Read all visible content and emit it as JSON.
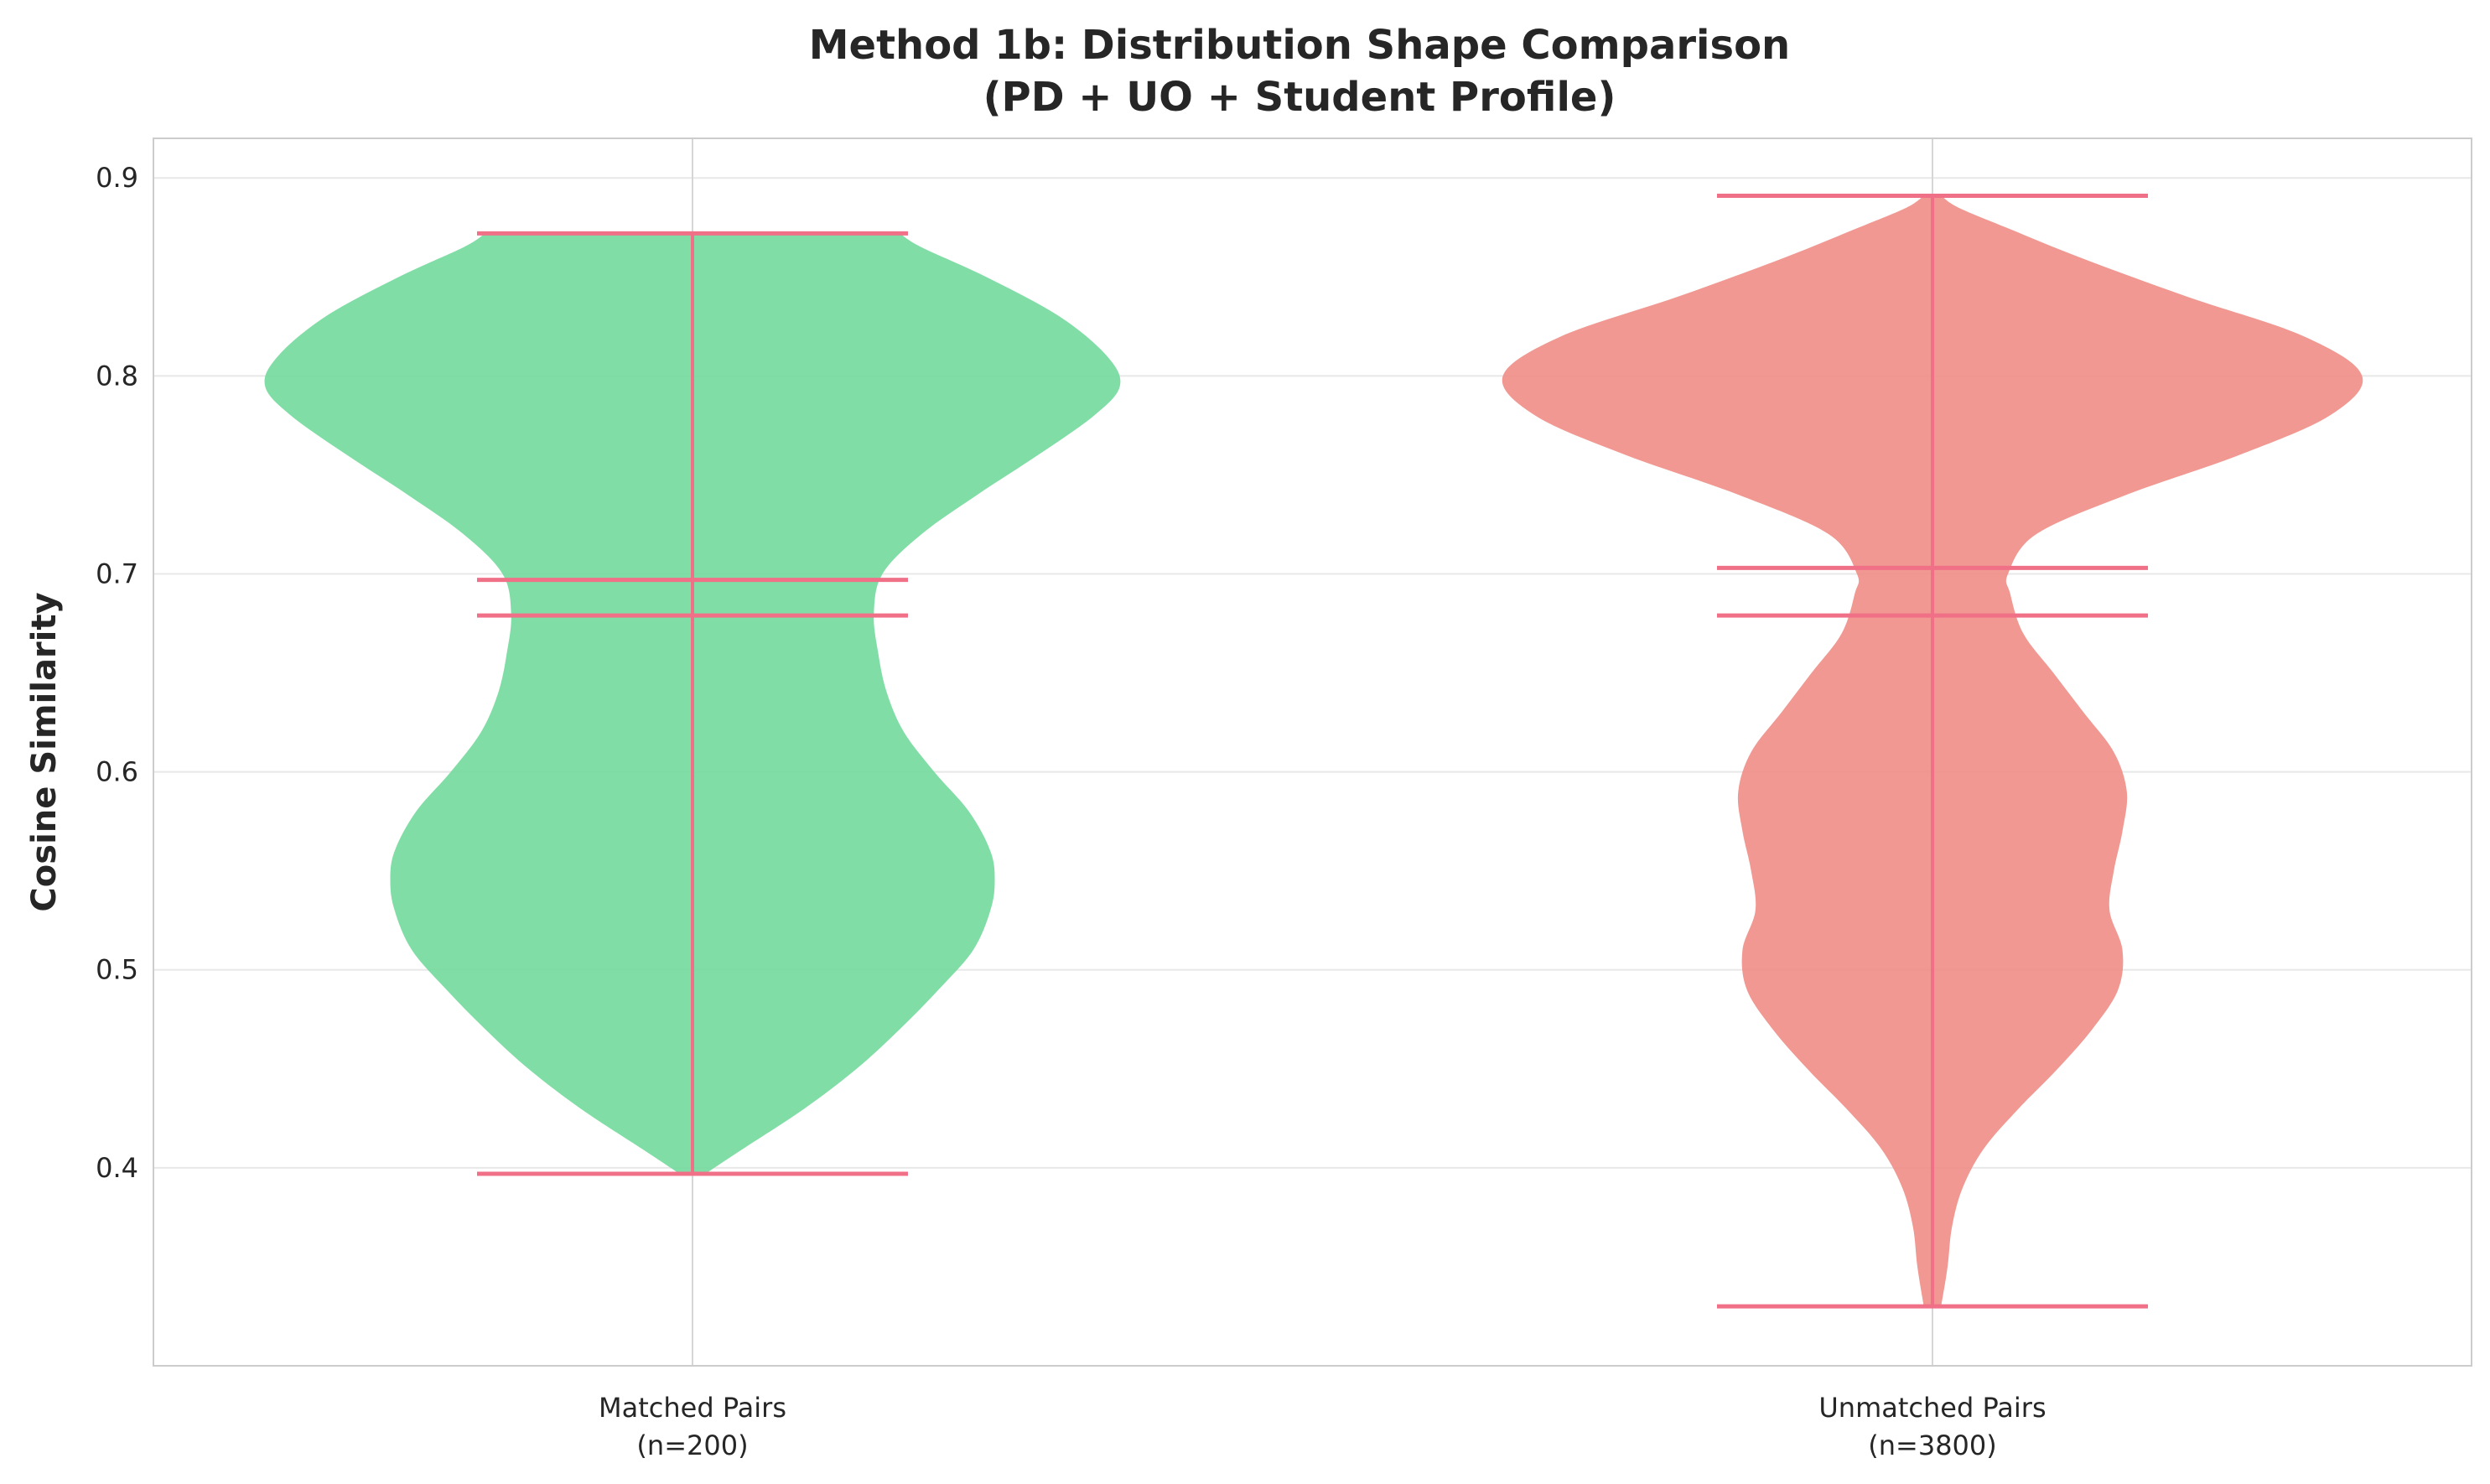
{
  "chart_data": {
    "type": "violin",
    "title": [
      "Method 1b: Distribution Shape Comparison",
      "(PD + UO + Student Profile)"
    ],
    "ylabel": "Cosine Similarity",
    "xlabel": "",
    "ylim": [
      0.3,
      0.92
    ],
    "yticks": [
      0.4,
      0.5,
      0.6,
      0.7,
      0.8,
      0.9
    ],
    "ytick_labels": [
      "0.4",
      "0.5",
      "0.6",
      "0.7",
      "0.8",
      "0.9"
    ],
    "grid": true,
    "line_color": "#f07088",
    "series": [
      {
        "category_lines": [
          "Matched Pairs",
          "(n=200)"
        ],
        "color": "#6ed898",
        "min": 0.397,
        "max": 0.872,
        "median": 0.679,
        "mean": 0.697,
        "density": [
          [
            0.397,
            0.03
          ],
          [
            0.41,
            0.12
          ],
          [
            0.43,
            0.26
          ],
          [
            0.45,
            0.38
          ],
          [
            0.47,
            0.48
          ],
          [
            0.49,
            0.57
          ],
          [
            0.51,
            0.65
          ],
          [
            0.53,
            0.69
          ],
          [
            0.545,
            0.7
          ],
          [
            0.56,
            0.69
          ],
          [
            0.58,
            0.64
          ],
          [
            0.6,
            0.56
          ],
          [
            0.62,
            0.49
          ],
          [
            0.64,
            0.45
          ],
          [
            0.66,
            0.43
          ],
          [
            0.68,
            0.42
          ],
          [
            0.7,
            0.44
          ],
          [
            0.72,
            0.53
          ],
          [
            0.74,
            0.66
          ],
          [
            0.76,
            0.8
          ],
          [
            0.78,
            0.93
          ],
          [
            0.795,
            0.99
          ],
          [
            0.81,
            0.96
          ],
          [
            0.83,
            0.85
          ],
          [
            0.85,
            0.68
          ],
          [
            0.865,
            0.53
          ],
          [
            0.872,
            0.48
          ]
        ]
      },
      {
        "category_lines": [
          "Unmatched Pairs",
          "(n=3800)"
        ],
        "color": "#ee8a82",
        "min": 0.33,
        "max": 0.891,
        "median": 0.679,
        "mean": 0.703,
        "density": [
          [
            0.33,
            0.02
          ],
          [
            0.35,
            0.035
          ],
          [
            0.37,
            0.045
          ],
          [
            0.39,
            0.07
          ],
          [
            0.41,
            0.12
          ],
          [
            0.43,
            0.2
          ],
          [
            0.45,
            0.29
          ],
          [
            0.47,
            0.37
          ],
          [
            0.49,
            0.43
          ],
          [
            0.51,
            0.44
          ],
          [
            0.53,
            0.41
          ],
          [
            0.55,
            0.42
          ],
          [
            0.57,
            0.44
          ],
          [
            0.59,
            0.45
          ],
          [
            0.61,
            0.42
          ],
          [
            0.63,
            0.35
          ],
          [
            0.65,
            0.28
          ],
          [
            0.67,
            0.21
          ],
          [
            0.69,
            0.18
          ],
          [
            0.7,
            0.175
          ],
          [
            0.72,
            0.24
          ],
          [
            0.74,
            0.45
          ],
          [
            0.76,
            0.71
          ],
          [
            0.78,
            0.92
          ],
          [
            0.8,
            0.995
          ],
          [
            0.82,
            0.86
          ],
          [
            0.84,
            0.59
          ],
          [
            0.86,
            0.34
          ],
          [
            0.875,
            0.17
          ],
          [
            0.885,
            0.06
          ],
          [
            0.891,
            0.02
          ]
        ]
      }
    ]
  }
}
